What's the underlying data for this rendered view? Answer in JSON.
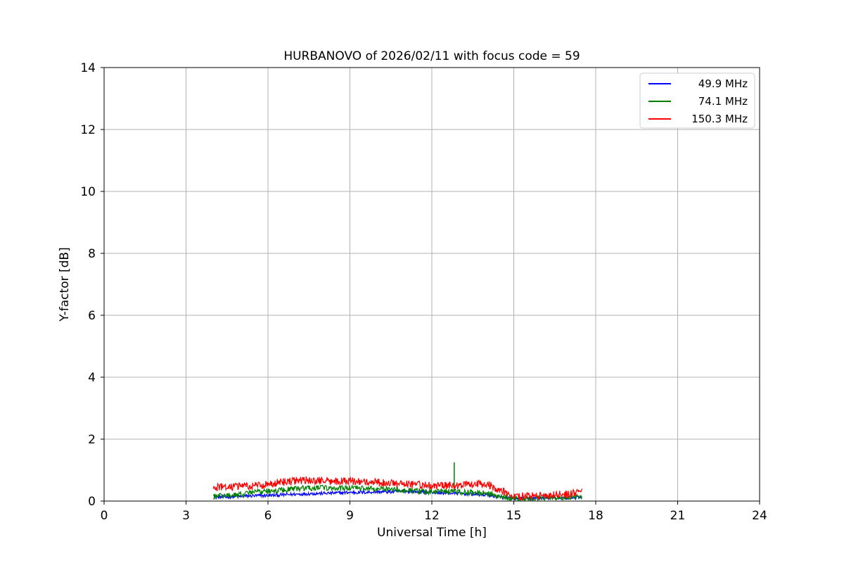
{
  "figure": {
    "background": "#ffffff"
  },
  "chart_data": {
    "type": "line",
    "title": "HURBANOVO of 2026/02/11 with focus code = 59",
    "xlabel": "Universal Time [h]",
    "ylabel": "Y-factor [dB]",
    "xlim": [
      0,
      24
    ],
    "ylim": [
      0,
      14
    ],
    "xticks": [
      0,
      3,
      6,
      9,
      12,
      15,
      18,
      21,
      24
    ],
    "yticks": [
      0,
      2,
      4,
      6,
      8,
      10,
      12,
      14
    ],
    "grid": true,
    "grid_color": "#b0b0b0",
    "spine_color": "#000000",
    "legend_position": "upper right",
    "x": [
      4.0,
      4.5,
      5.0,
      5.5,
      6.0,
      6.5,
      7.0,
      7.5,
      8.0,
      8.5,
      9.0,
      9.5,
      10.0,
      10.5,
      11.0,
      11.5,
      12.0,
      12.5,
      13.0,
      13.5,
      14.0,
      14.5,
      15.0,
      15.5,
      16.0,
      16.5,
      17.0,
      17.5
    ],
    "series": [
      {
        "name": "49.9 MHz",
        "color": "#0000ff",
        "noise_amplitude": 0.055,
        "y": [
          0.12,
          0.13,
          0.15,
          0.17,
          0.18,
          0.2,
          0.22,
          0.24,
          0.25,
          0.26,
          0.28,
          0.28,
          0.3,
          0.3,
          0.32,
          0.3,
          0.28,
          0.26,
          0.25,
          0.22,
          0.2,
          0.12,
          0.08,
          0.08,
          0.09,
          0.1,
          0.1,
          0.12
        ]
      },
      {
        "name": "74.1 MHz",
        "color": "#008000",
        "noise_amplitude": 0.09,
        "y": [
          0.15,
          0.18,
          0.22,
          0.28,
          0.32,
          0.35,
          0.4,
          0.42,
          0.42,
          0.4,
          0.42,
          0.42,
          0.4,
          0.38,
          0.35,
          0.32,
          0.3,
          0.3,
          0.3,
          0.28,
          0.25,
          0.15,
          0.08,
          0.08,
          0.1,
          0.12,
          0.12,
          0.15
        ],
        "spikes": [
          {
            "x": 12.82,
            "y": 1.25
          }
        ]
      },
      {
        "name": "150.3 MHz",
        "color": "#ff0000",
        "noise_amplitude": 0.13,
        "y": [
          0.45,
          0.45,
          0.48,
          0.5,
          0.55,
          0.6,
          0.65,
          0.68,
          0.65,
          0.65,
          0.65,
          0.62,
          0.6,
          0.58,
          0.55,
          0.52,
          0.5,
          0.5,
          0.52,
          0.55,
          0.55,
          0.35,
          0.15,
          0.15,
          0.18,
          0.2,
          0.22,
          0.32
        ]
      }
    ]
  }
}
